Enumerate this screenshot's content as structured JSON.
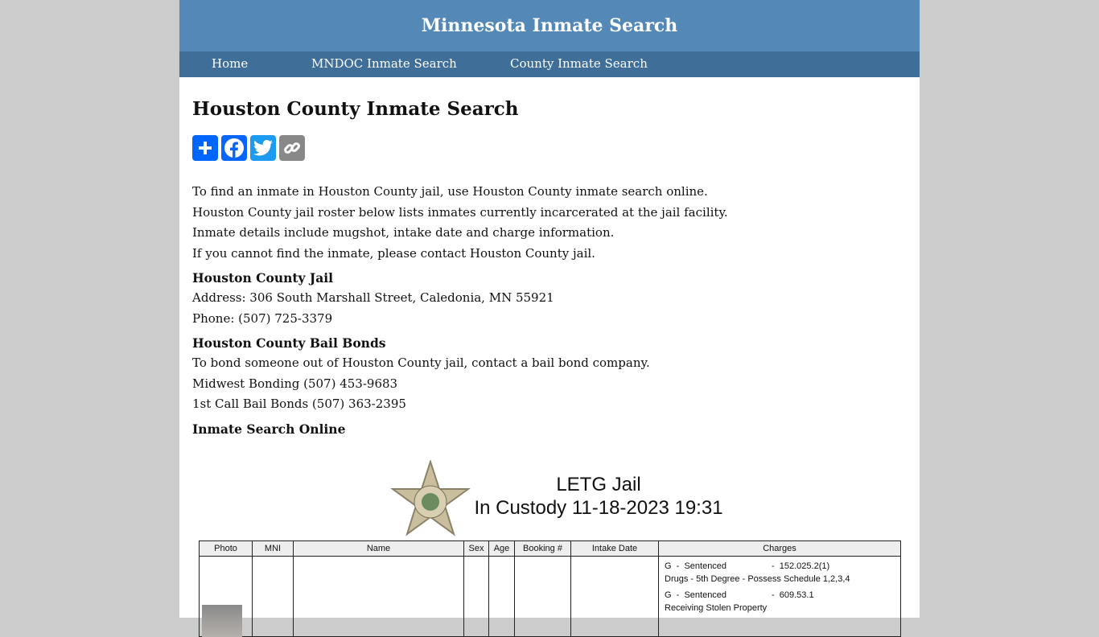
{
  "header": {
    "title": "Minnesota Inmate Search"
  },
  "nav": [
    {
      "label": "Home"
    },
    {
      "label": "MNDOC Inmate Search"
    },
    {
      "label": "County Inmate Search"
    }
  ],
  "page_title": "Houston County Inmate Search",
  "share": [
    {
      "icon": "plus-icon",
      "color": "#0166ff"
    },
    {
      "icon": "facebook-icon",
      "color": "#0866ff"
    },
    {
      "icon": "twitter-icon",
      "color": "#1d9bf0"
    },
    {
      "icon": "link-icon",
      "color": "#888888"
    }
  ],
  "intro": [
    "To find an inmate in Houston County jail, use Houston County inmate search online.",
    "Houston County jail roster below lists inmates currently incarcerated at the jail facility.",
    "Inmate details include mugshot, intake date and charge information.",
    "If you cannot find the inmate, please contact Houston County jail."
  ],
  "jail": {
    "heading": "Houston County Jail",
    "address": "Address: 306 South Marshall Street, Caledonia, MN 55921",
    "phone": "Phone: (507) 725-3379"
  },
  "bail": {
    "heading": "Houston County Bail Bonds",
    "lines": [
      "To bond someone out of Houston County jail, contact a bail bond company.",
      "Midwest Bonding (507) 453-9683",
      "1st Call Bail Bonds (507) 363-2395"
    ]
  },
  "online_heading": "Inmate Search Online",
  "roster": {
    "title": "LETG Jail",
    "subtitle": "In Custody 11-18-2023 19:31",
    "columns": [
      "Photo",
      "MNI",
      "Name",
      "Sex",
      "Age",
      "Booking #",
      "Intake Date",
      "Charges"
    ],
    "charges": [
      {
        "status": "G  -  Sentenced",
        "code": "-  152.025.2(1)",
        "desc": "Drugs - 5th Degree - Possess Schedule 1,2,3,4"
      },
      {
        "status": "G  -  Sentenced",
        "code": "-  609.53.1",
        "desc": "Receiving Stolen Property"
      }
    ]
  }
}
